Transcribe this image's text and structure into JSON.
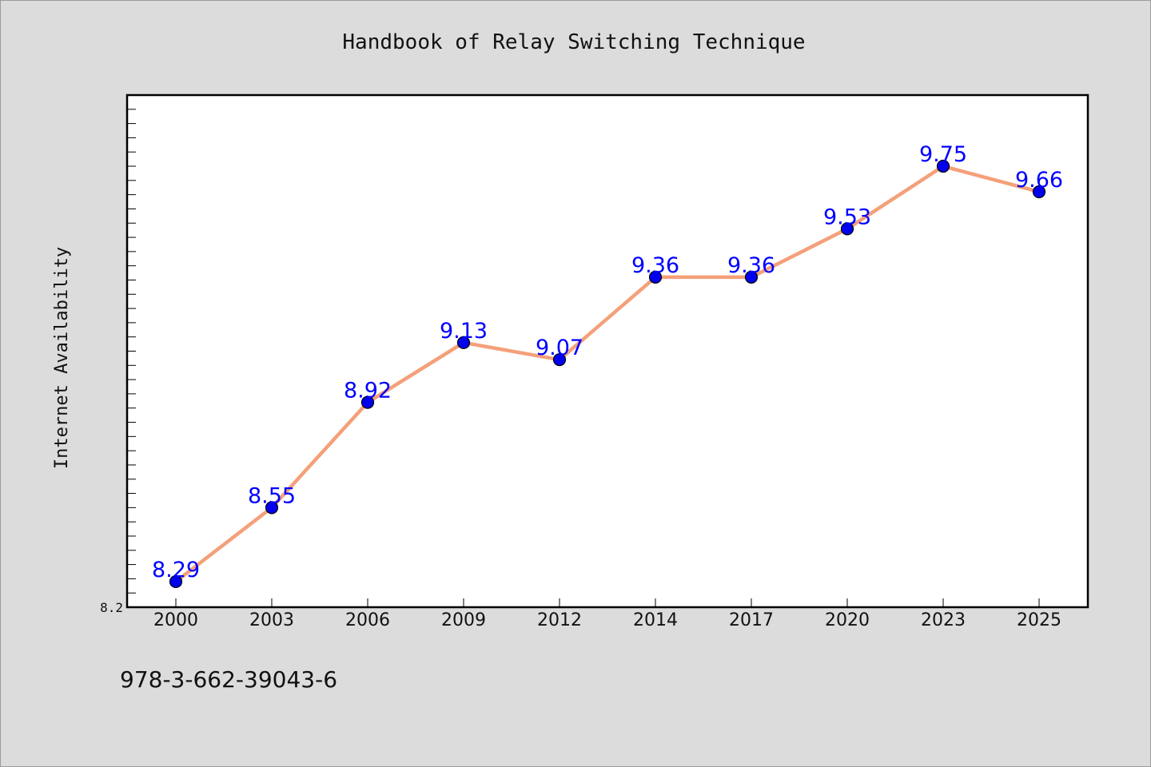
{
  "chart_data": {
    "type": "line",
    "title": "Handbook of Relay Switching Technique",
    "xlabel": "",
    "ylabel": "Internet Availability",
    "categories": [
      "2000",
      "2003",
      "2006",
      "2009",
      "2012",
      "2014",
      "2017",
      "2020",
      "2023",
      "2025"
    ],
    "series": [
      {
        "values": [
          8.29,
          8.55,
          8.92,
          9.13,
          9.07,
          9.36,
          9.36,
          9.53,
          9.75,
          9.66
        ],
        "labels": [
          "8.29",
          "8.55",
          "8.92",
          "9.13",
          "9.07",
          "9.36",
          "9.36",
          "9.53",
          "9.75",
          "9.66"
        ],
        "line_color": "#f4a07a",
        "marker_color": "#0000ee"
      }
    ],
    "ylim": [
      8.2,
      10.0
    ],
    "yticks_labeled": [
      "8.2"
    ],
    "grid": false,
    "legend": "none"
  },
  "footer": {
    "isbn": "978-3-662-39043-6"
  }
}
